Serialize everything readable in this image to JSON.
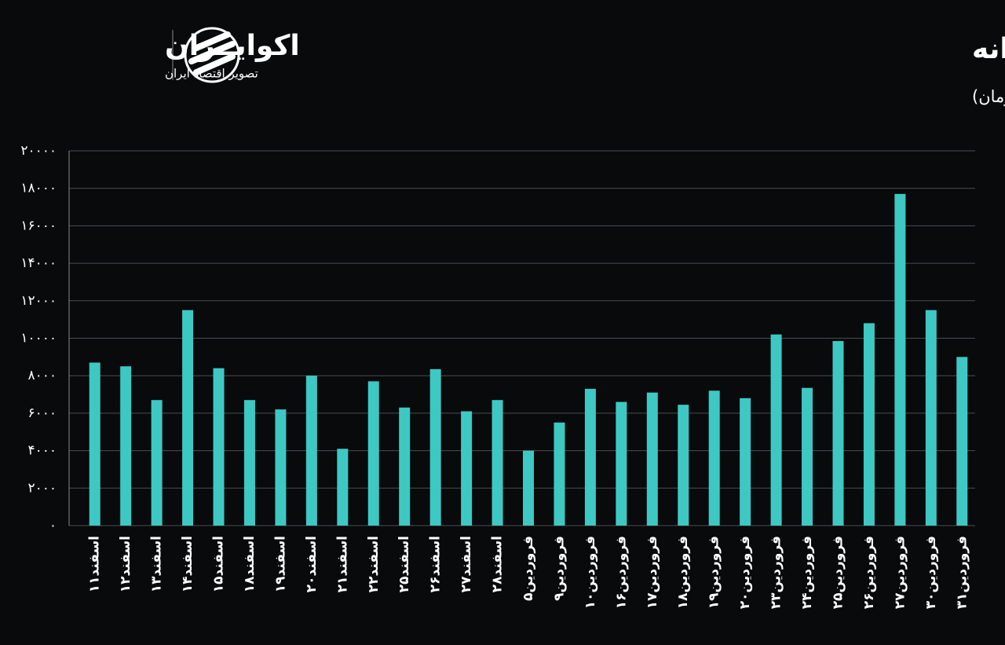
{
  "chart_data": {
    "type": "bar",
    "title": "روند ارزش معاملات خرد روزانه",
    "subtitle": "(واحد: میلیارد تومان)",
    "brand": "اکوایــران",
    "brand_tagline": "تصویر اقتصاد ایران",
    "categories": [
      "اسفند۱۱",
      "اسفند۱۲",
      "اسفند۱۳",
      "اسفند۱۴",
      "اسفند۱۵",
      "اسفند۱۸",
      "اسفند۱۹",
      "اسفند۲۰",
      "اسفند۲۱",
      "اسفند۲۲",
      "اسفند۲۵",
      "اسفند۲۶",
      "اسفند۲۷",
      "اسفند۲۸",
      "فروردین۵",
      "فروردین۹",
      "فروردین۱۰",
      "فروردین۱۶",
      "فروردین۱۷",
      "فروردین۱۸",
      "فروردین۱۹",
      "فروردین۲۰",
      "فروردین۲۳",
      "فروردین۲۴",
      "فروردین۲۵",
      "فروردین۲۶",
      "فروردین۲۷",
      "فروردین۳۰",
      "فروردین۳۱"
    ],
    "values": [
      8700,
      8500,
      6700,
      11500,
      8400,
      6700,
      6200,
      8000,
      4100,
      7700,
      6300,
      8350,
      6100,
      6700,
      4000,
      5500,
      7300,
      6600,
      7100,
      6450,
      7200,
      6800,
      10200,
      7350,
      9850,
      10800,
      17700,
      11500,
      9000
    ],
    "color": "#3ec8c3",
    "ylim": [
      0,
      20000
    ],
    "yticks": [
      {
        "value": 0,
        "label": "۰"
      },
      {
        "value": 2000,
        "label": "۲۰۰۰"
      },
      {
        "value": 4000,
        "label": "۴۰۰۰"
      },
      {
        "value": 6000,
        "label": "۶۰۰۰"
      },
      {
        "value": 8000,
        "label": "۸۰۰۰"
      },
      {
        "value": 10000,
        "label": "۱۰۰۰۰"
      },
      {
        "value": 12000,
        "label": "۱۲۰۰۰"
      },
      {
        "value": 14000,
        "label": "۱۴۰۰۰"
      },
      {
        "value": 16000,
        "label": "۱۶۰۰۰"
      },
      {
        "value": 18000,
        "label": "۱۸۰۰۰"
      },
      {
        "value": 20000,
        "label": "۲۰۰۰۰"
      }
    ],
    "grid": true
  }
}
